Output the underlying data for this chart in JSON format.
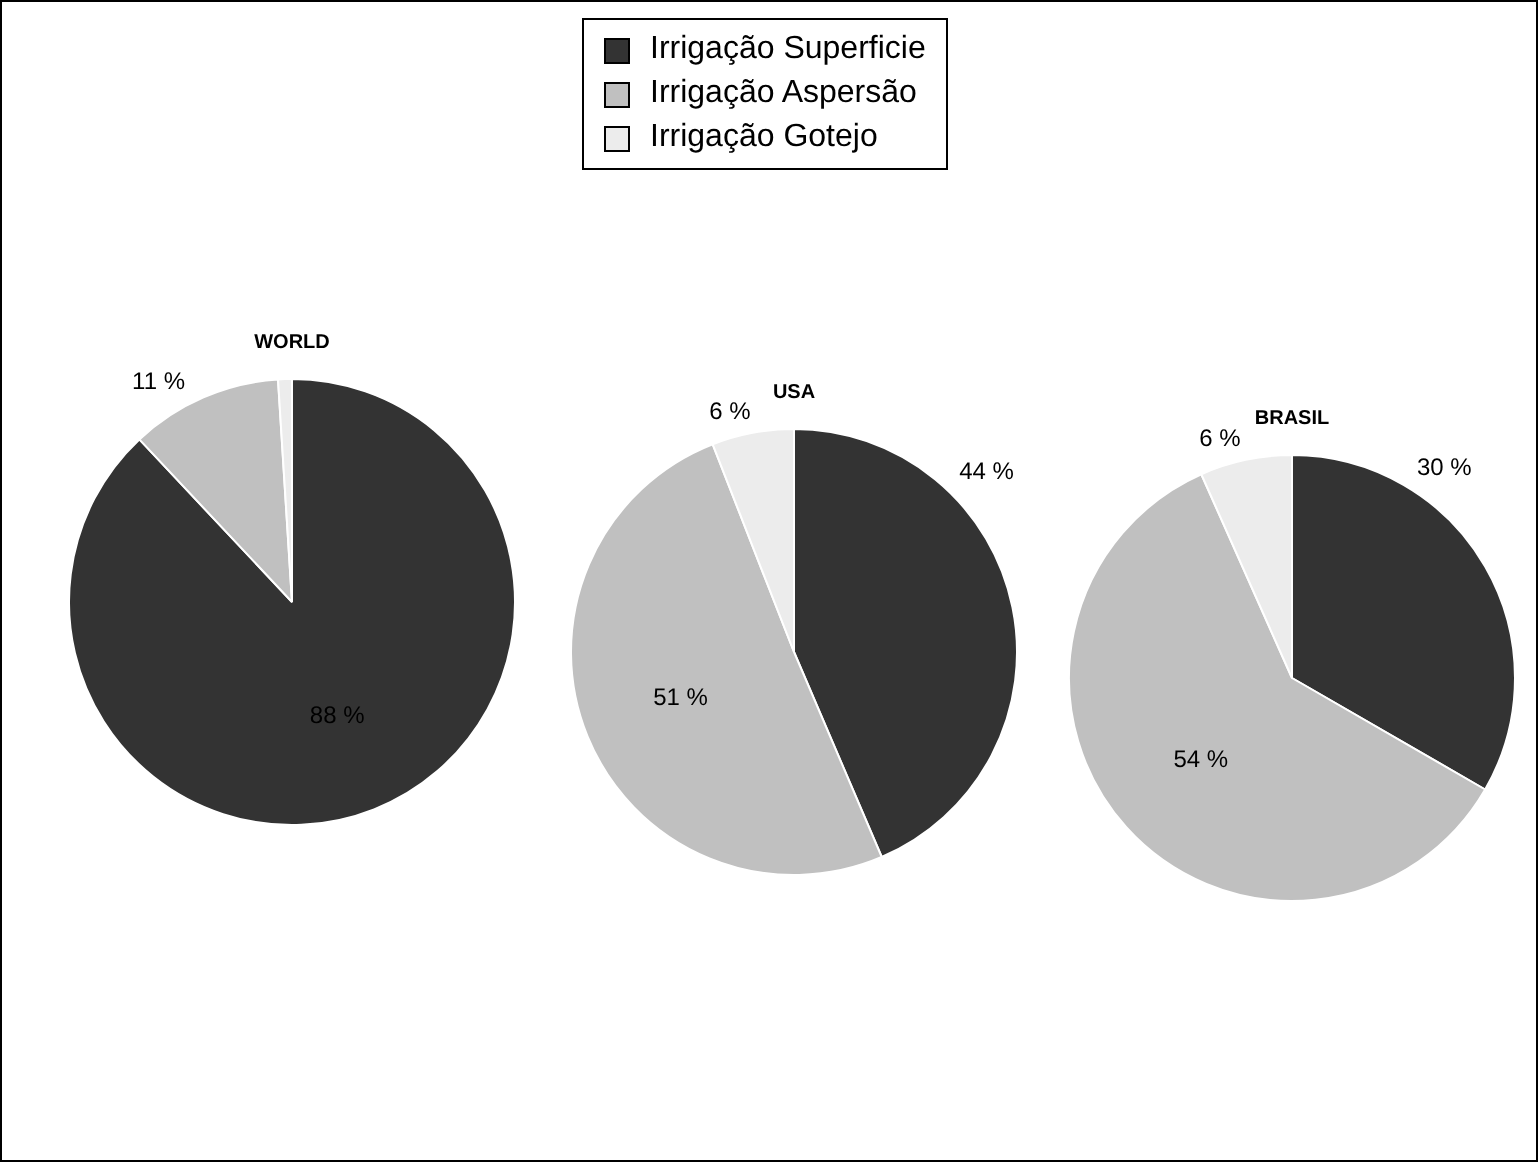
{
  "chart_data": [
    {
      "type": "pie",
      "title": "WORLD",
      "categories": [
        "Irrigação Superficie",
        "Irrigação Aspersão",
        "Irrigação Gotejo"
      ],
      "values": [
        88,
        11,
        1
      ],
      "value_labels": [
        "88 %",
        "11 %",
        null
      ],
      "colors": [
        "#333333",
        "#c0c0c0",
        "#ececec"
      ],
      "legend": "top"
    },
    {
      "type": "pie",
      "title": "USA",
      "categories": [
        null,
        null,
        null
      ],
      "values": [
        44,
        51,
        6
      ],
      "value_labels": [
        "44 %",
        "51 %",
        "6 %"
      ],
      "colors": [
        "#333333",
        "#c0c0c0",
        "#ececec"
      ]
    },
    {
      "type": "pie",
      "title": "BRASIL",
      "categories": [
        null,
        null,
        null
      ],
      "values": [
        30,
        54,
        6
      ],
      "value_labels": [
        "30 %",
        "54 %",
        "6 %"
      ],
      "colors": [
        "#333333",
        "#c0c0c0",
        "#ececec"
      ]
    }
  ]
}
